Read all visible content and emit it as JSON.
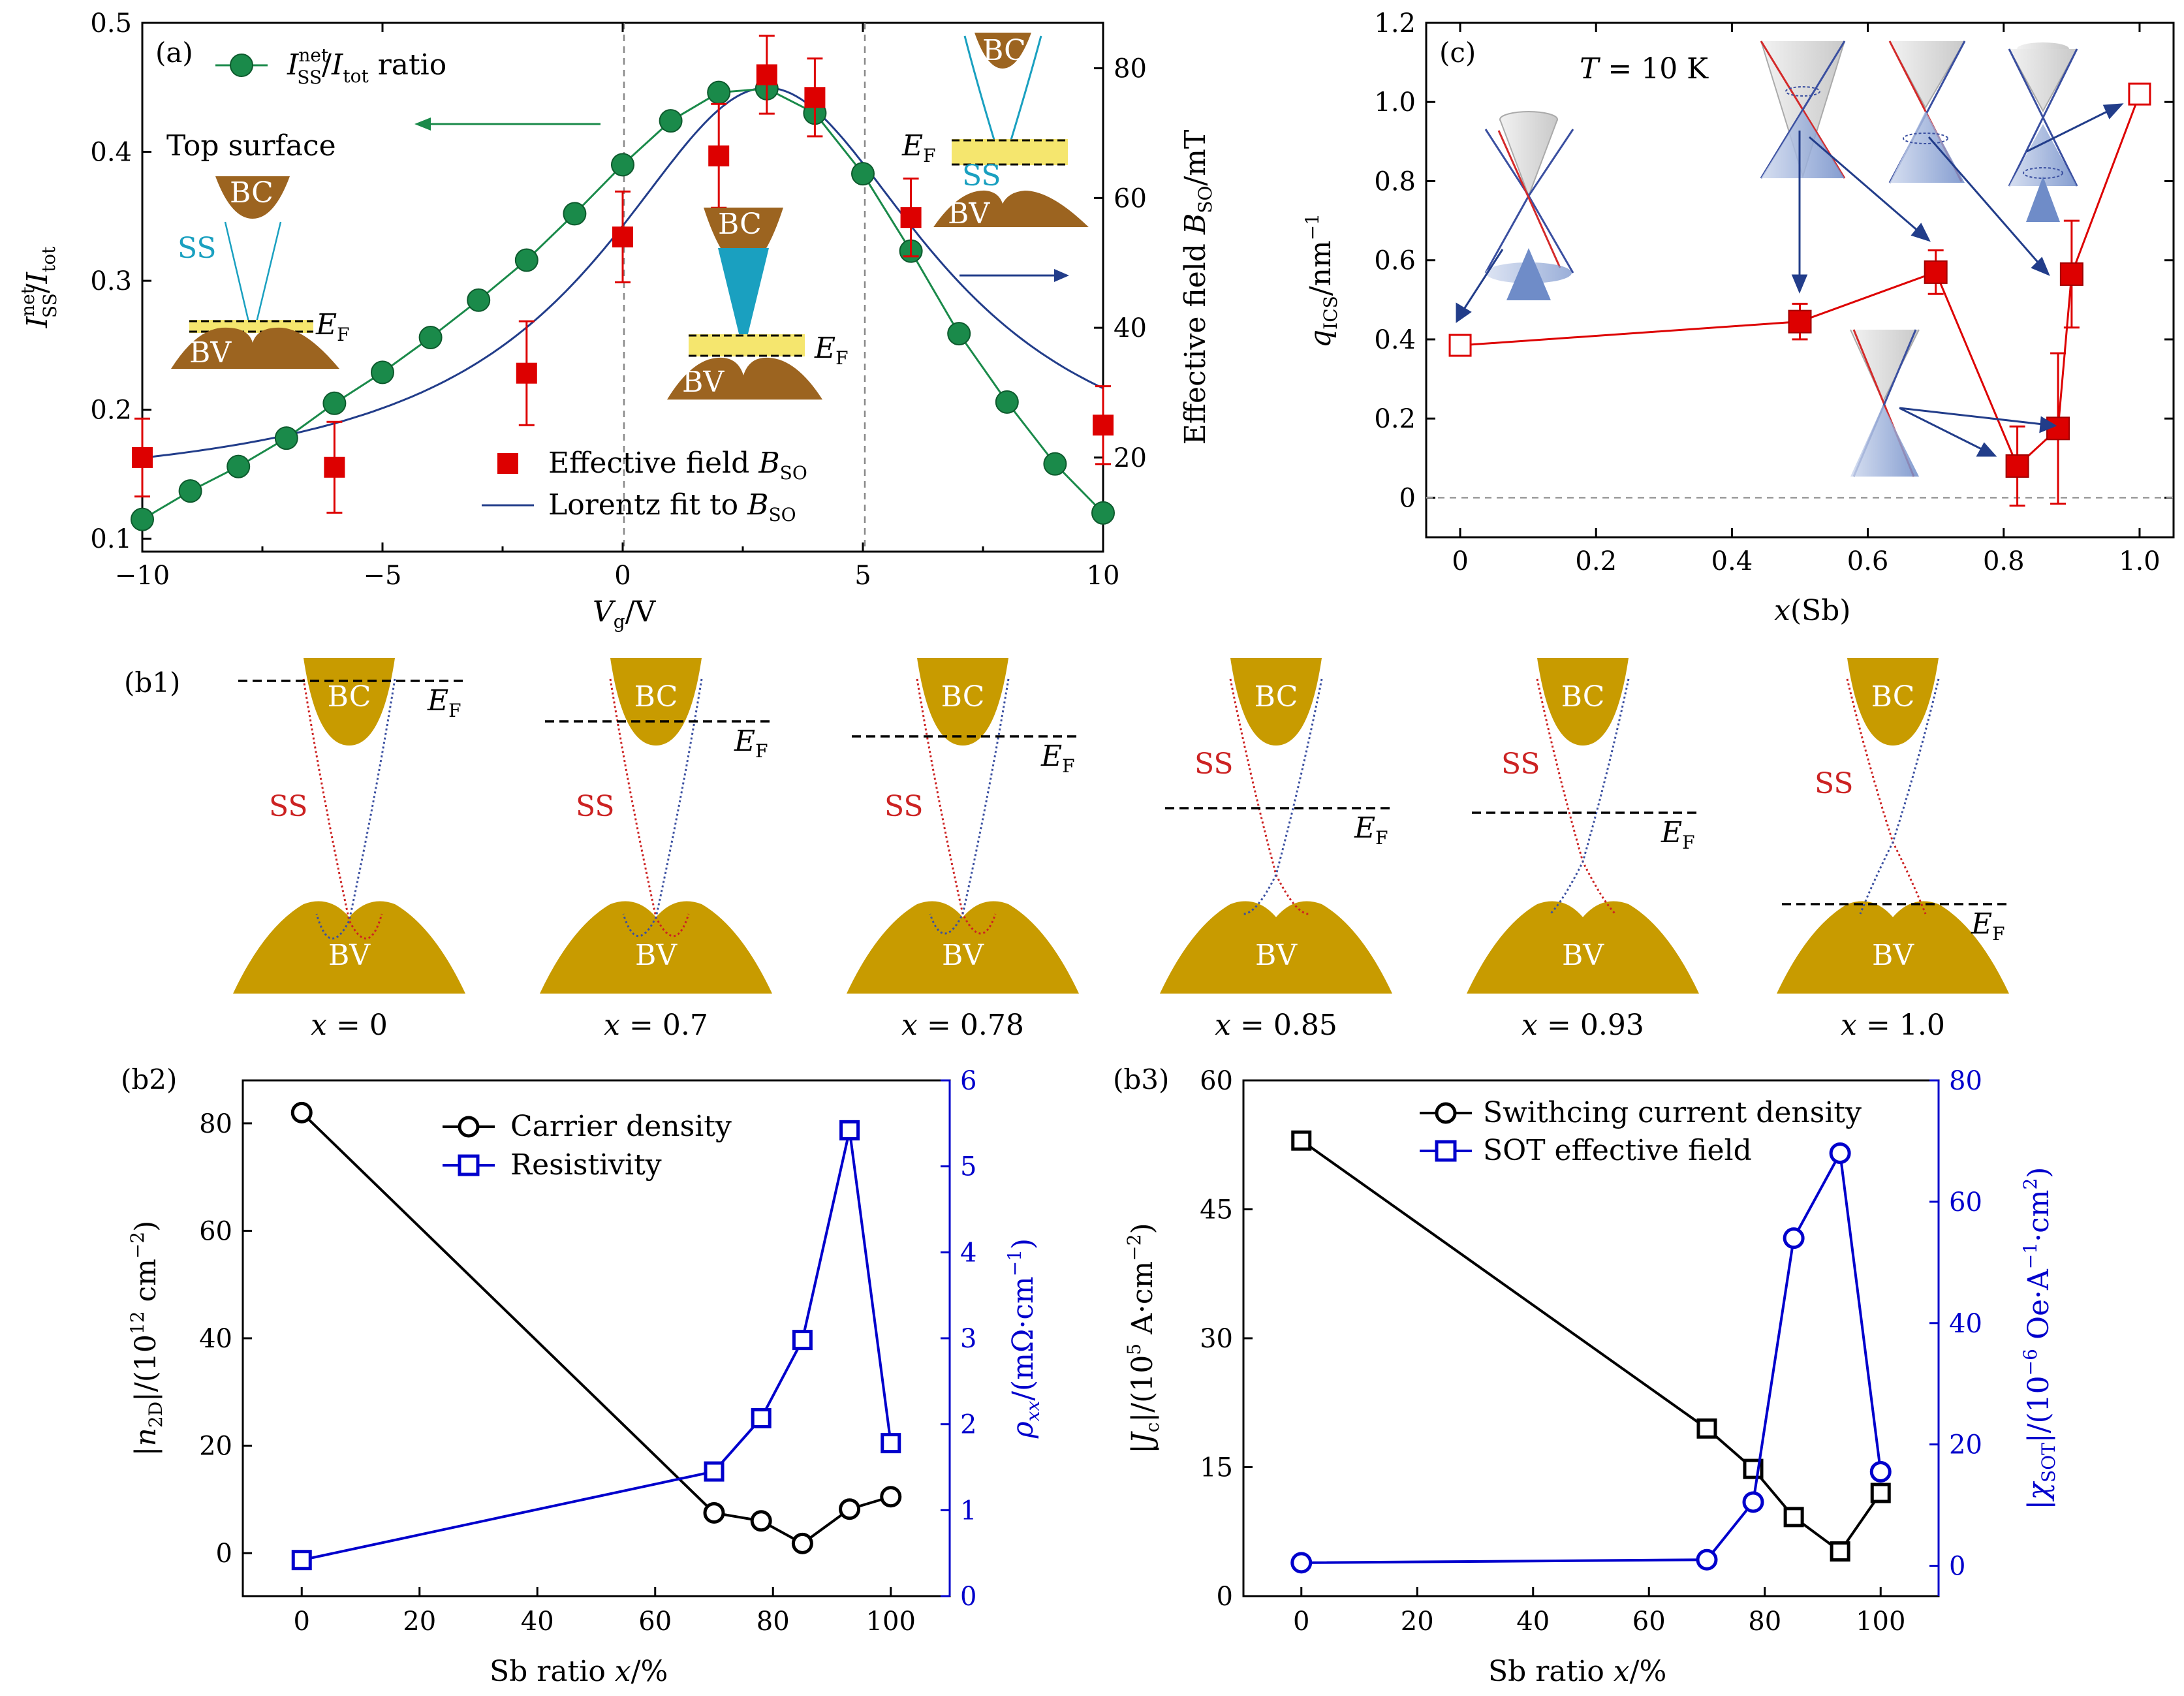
{
  "chart_data": [
    {
      "panel": "(a)",
      "type": "scatter",
      "xlabel": "V_g/V",
      "ylabel": "I_SS^net/I_tot",
      "y2label": "Effective field B_SO/mT",
      "xlim": [
        -10,
        10
      ],
      "ylim": [
        0.09,
        0.5
      ],
      "y2lim": [
        5.5,
        87
      ],
      "xticks": [
        "−10",
        "−5",
        "0",
        "5",
        "10"
      ],
      "yticks": [
        "0.1",
        "0.2",
        "0.3",
        "0.4",
        "0.5"
      ],
      "y2ticks": [
        "20",
        "40",
        "60",
        "80"
      ],
      "vlines": [
        0,
        5
      ],
      "series": [
        {
          "name": "I_SS^net/I_tot ratio",
          "color": "#1a8a4a",
          "axis": "left",
          "x": [
            -10,
            -9,
            -8,
            -7,
            -6,
            -5,
            -4,
            -3,
            -2,
            -1,
            0,
            1,
            2,
            3,
            4,
            5,
            6,
            7,
            8,
            9,
            10
          ],
          "y": [
            0.115,
            0.137,
            0.156,
            0.178,
            0.205,
            0.229,
            0.256,
            0.285,
            0.316,
            0.352,
            0.39,
            0.424,
            0.446,
            0.449,
            0.43,
            0.383,
            0.323,
            0.259,
            0.206,
            0.158,
            0.12
          ]
        },
        {
          "name": "Effective field B_SO",
          "color": "#dd0000",
          "axis": "right",
          "x": [
            -10,
            -6,
            -2,
            0,
            2,
            3,
            4,
            6,
            10
          ],
          "y": [
            20,
            18.5,
            33,
            54,
            66.5,
            79,
            75.5,
            57,
            25
          ],
          "err": [
            6,
            7,
            8,
            7,
            8,
            6,
            6,
            6,
            6
          ]
        },
        {
          "name": "Lorentz fit to B_SO",
          "color": "#223d8a",
          "axis": "right",
          "lorentz": {
            "y0": 14,
            "A": 63,
            "x0": 3,
            "w": 4.2
          }
        }
      ],
      "annotations": [
        "(a)",
        "Top surface",
        "BC",
        "SS",
        "BV",
        "E_F"
      ]
    },
    {
      "panel": "(c)",
      "type": "scatter",
      "xlabel": "x(Sb)",
      "ylabel": "q_ICS/nm^−1",
      "xlim": [
        -0.05,
        1.05
      ],
      "ylim": [
        -0.1,
        1.2
      ],
      "xticks": [
        "0",
        "0.2",
        "0.4",
        "0.6",
        "0.8",
        "1.0"
      ],
      "yticks": [
        "0",
        "0.2",
        "0.4",
        "0.6",
        "0.8",
        "1.0",
        "1.2"
      ],
      "series": [
        {
          "name": "",
          "color": "#dd0000",
          "x": [
            0,
            0.5,
            0.7,
            0.82,
            0.88,
            0.9,
            1.0
          ],
          "y": [
            0.385,
            0.445,
            0.57,
            0.08,
            0.175,
            0.565,
            1.02
          ],
          "err": [
            0,
            0.045,
            0.055,
            0.1,
            0.19,
            0.135,
            0
          ],
          "filled": [
            false,
            true,
            true,
            true,
            true,
            true,
            false
          ]
        }
      ],
      "annotations": [
        "(c)",
        "T = 10 K"
      ]
    },
    {
      "panel": "(b1)",
      "type": "diagram",
      "labels": [
        "x = 0",
        "x = 0.7",
        "x = 0.78",
        "x = 0.85",
        "x = 0.93",
        "x = 1.0"
      ],
      "band_labels": [
        "BC",
        "BV",
        "SS",
        "E_F"
      ]
    },
    {
      "panel": "(b2)",
      "type": "line",
      "xlabel": "Sb ratio x/%",
      "ylabel": "|n_2D|/(10^12 cm^−2)",
      "y2label": "ρ_xx/(mΩ·cm^−1)",
      "xlim": [
        -10,
        110
      ],
      "ylim": [
        -8,
        88
      ],
      "y2lim": [
        0,
        6
      ],
      "xticks": [
        "0",
        "20",
        "40",
        "60",
        "80",
        "100"
      ],
      "yticks": [
        "0",
        "20",
        "40",
        "60",
        "80"
      ],
      "y2ticks": [
        "0",
        "1",
        "2",
        "3",
        "4",
        "5",
        "6"
      ],
      "series": [
        {
          "name": "Carrier density",
          "color": "#000000",
          "marker": "circle",
          "axis": "left",
          "x": [
            0,
            70,
            78,
            85,
            93,
            100
          ],
          "y": [
            82,
            7.5,
            6,
            1.8,
            8.2,
            10.5
          ]
        },
        {
          "name": "Resistivity",
          "color": "#0000cc",
          "marker": "square",
          "axis": "right",
          "x": [
            0,
            70,
            78,
            85,
            93,
            100
          ],
          "y": [
            0.42,
            1.45,
            2.07,
            2.98,
            5.42,
            1.78
          ]
        }
      ]
    },
    {
      "panel": "(b3)",
      "type": "line",
      "xlabel": "Sb ratio x/%",
      "ylabel": "|J_c|/(10^5 A·cm^−2)",
      "y2label": "|χ_SOT|/(10^−6 Oe·A^−1·cm^2)",
      "xlim": [
        -10,
        110
      ],
      "ylim": [
        0,
        60
      ],
      "y2lim": [
        -5,
        80
      ],
      "xticks": [
        "0",
        "20",
        "40",
        "60",
        "80",
        "100"
      ],
      "yticks": [
        "0",
        "15",
        "30",
        "45",
        "60"
      ],
      "y2ticks": [
        "0",
        "20",
        "40",
        "60",
        "80"
      ],
      "series": [
        {
          "name": "Swithcing current density",
          "color": "#000000",
          "marker": "square",
          "axis": "left",
          "x": [
            0,
            70,
            78,
            85,
            93,
            100
          ],
          "y": [
            53,
            19.5,
            14.8,
            9.2,
            5.2,
            12
          ]
        },
        {
          "name": "SOT effective field",
          "color": "#0000cc",
          "marker": "circle",
          "axis": "right",
          "x": [
            0,
            70,
            78,
            85,
            93,
            100
          ],
          "y": [
            0.5,
            1,
            10.5,
            54,
            68,
            15.5
          ]
        }
      ]
    }
  ],
  "legend": {
    "a_ratio": "I",
    "a_ratio_sup": "net",
    "a_ratio_sub": "SS",
    "a_ratio_mid": "/I",
    "a_ratio_sub2": "tot",
    "a_ratio_tail": " ratio",
    "a_bso": "Effective field B",
    "a_bso_sub": "SO",
    "a_fit": "Lorentz fit to B",
    "a_fit_sub": "SO"
  },
  "colors": {
    "bands_a": "#9c6420",
    "bands_b": "#c89b00",
    "ss_a": "#1aa0c0",
    "ef_band": "#f5e66e",
    "cone_red": "#d42a2a",
    "cone_blue": "#3a4fa0"
  }
}
